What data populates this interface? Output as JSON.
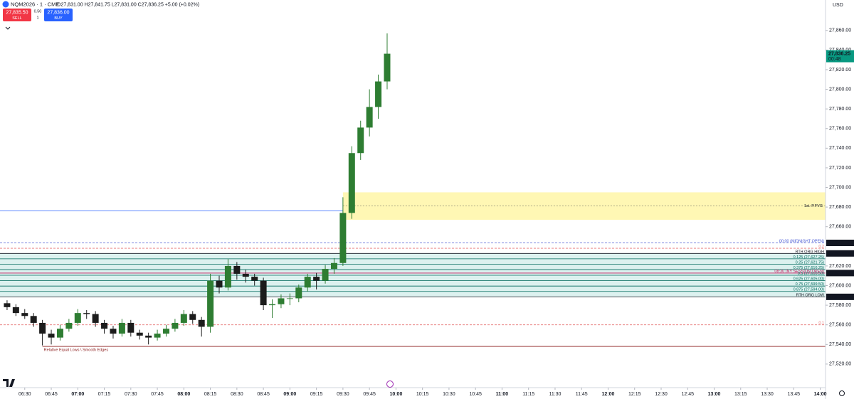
{
  "header": {
    "symbol": "NQM2026 · 1 · CME",
    "ohlc": "O27,831.00 H27,841.75 L27,831.00 C27,836.25 +5.00 (+0.02%)",
    "sell_price": "27,835.50",
    "sell_label": "SELL",
    "buy_price": "27,836.00",
    "buy_label": "BUY",
    "spread": "0.50",
    "quantity": "1",
    "currency": "USD"
  },
  "chart_data": {
    "type": "candlestick",
    "up_color": "#2e7d32",
    "down_color": "#1c1c1c",
    "x": [
      "06:20",
      "06:25",
      "06:30",
      "06:35",
      "06:40",
      "06:45",
      "06:50",
      "06:55",
      "07:00",
      "07:05",
      "07:10",
      "07:15",
      "07:20",
      "07:25",
      "07:30",
      "07:35",
      "07:40",
      "07:45",
      "07:50",
      "07:55",
      "08:00",
      "08:05",
      "08:10",
      "08:15",
      "08:20",
      "08:25",
      "08:30",
      "08:35",
      "08:40",
      "08:45",
      "08:50",
      "08:55",
      "09:00",
      "09:05",
      "09:10",
      "09:15",
      "09:20",
      "09:25",
      "09:30",
      "09:35",
      "09:40",
      "09:45",
      "09:50",
      "09:55"
    ],
    "open": [
      27582,
      27578,
      27572,
      27569,
      27562,
      27551,
      27547,
      27556,
      27562,
      27572,
      27571,
      27562,
      27556,
      27551,
      27562,
      27552,
      27549,
      27547,
      27551,
      27556,
      27562,
      27571,
      27565,
      27558,
      27605,
      27598,
      27620,
      27612,
      27609,
      27605,
      27580,
      27581,
      27587,
      27587,
      27598,
      27609,
      27605,
      27617,
      27623,
      27674,
      27735,
      27761,
      27782,
      27808
    ],
    "high": [
      27585,
      27581,
      27576,
      27572,
      27565,
      27555,
      27560,
      27566,
      27576,
      27575,
      27574,
      27565,
      27559,
      27566,
      27565,
      27555,
      27552,
      27555,
      27560,
      27566,
      27575,
      27574,
      27568,
      27612,
      27610,
      27627,
      27624,
      27616,
      27612,
      27608,
      27586,
      27591,
      27592,
      27601,
      27612,
      27613,
      27621,
      27628,
      27690,
      27742,
      27768,
      27800,
      27815,
      27857
    ],
    "low": [
      27575,
      27569,
      27566,
      27558,
      27539,
      27540,
      27544,
      27553,
      27559,
      27566,
      27558,
      27551,
      27546,
      27548,
      27548,
      27545,
      27540,
      27544,
      27548,
      27553,
      27559,
      27561,
      27548,
      27552,
      27592,
      27595,
      27606,
      27603,
      27600,
      27575,
      27567,
      27577,
      27580,
      27583,
      27594,
      27596,
      27602,
      27612,
      27620,
      27668,
      27728,
      27752,
      27770,
      27800
    ],
    "close": [
      27578,
      27572,
      27569,
      27562,
      27551,
      27547,
      27556,
      27562,
      27572,
      27571,
      27562,
      27556,
      27551,
      27562,
      27552,
      27549,
      27547,
      27551,
      27556,
      27562,
      27571,
      27565,
      27558,
      27605,
      27598,
      27620,
      27612,
      27609,
      27605,
      27580,
      27581,
      27587,
      27587,
      27598,
      27609,
      27605,
      27617,
      27623,
      27674,
      27735,
      27761,
      27782,
      27808,
      27836.25
    ],
    "xlim": [
      "06:16",
      "14:03"
    ],
    "xticks": [
      "06:30",
      "06:45",
      "07:00",
      "07:15",
      "07:30",
      "07:45",
      "08:00",
      "08:15",
      "08:30",
      "08:45",
      "09:00",
      "09:15",
      "09:30",
      "09:45",
      "10:00",
      "10:15",
      "10:30",
      "10:45",
      "11:00",
      "11:15",
      "11:30",
      "11:45",
      "12:00",
      "12:15",
      "12:30",
      "12:45",
      "13:00",
      "13:15",
      "13:30",
      "13:45",
      "14:00"
    ],
    "ylim": [
      27496,
      27891
    ],
    "yticks": [
      {
        "value": 27520,
        "label": "27,520.00"
      },
      {
        "value": 27540,
        "label": "27,540.00"
      },
      {
        "value": 27560,
        "label": "27,560.00"
      },
      {
        "value": 27580,
        "label": "27,580.00"
      },
      {
        "value": 27600,
        "label": "27,600.00"
      },
      {
        "value": 27620,
        "label": "27,620.00"
      },
      {
        "value": 27660,
        "label": "27,660.00"
      },
      {
        "value": 27680,
        "label": "27,680.00"
      },
      {
        "value": 27700,
        "label": "27,700.00"
      },
      {
        "value": 27720,
        "label": "27,720.00"
      },
      {
        "value": 27740,
        "label": "27,740.00"
      },
      {
        "value": 27760,
        "label": "27,760.00"
      },
      {
        "value": 27780,
        "label": "27,780.00"
      },
      {
        "value": 27800,
        "label": "27,800.00"
      },
      {
        "value": 27820,
        "label": "27,820.00"
      },
      {
        "value": 27840,
        "label": "27,840.00"
      },
      {
        "value": 27860,
        "label": "27,860.00"
      }
    ],
    "grid": false,
    "fvg": {
      "name": "1st. P.FVG",
      "start": "09:30",
      "ylim": [
        27667,
        27695
      ],
      "mid": 27681,
      "color": "#fff176"
    },
    "zone": {
      "ylim": [
        27588.5,
        27632.75
      ],
      "color": "#b2dfdb"
    },
    "levels": [
      {
        "value": 27676,
        "end": "09:30",
        "color": "#2962ff",
        "dash": false
      },
      {
        "value": 27643.5,
        "name": "00:00 (MIDNIGHT OPEN)",
        "tag": "27,643.50",
        "color": "#4a5bd4",
        "dash": true,
        "tag_color": "#131722"
      },
      {
        "value": 27638,
        "name": "0.2",
        "color": "#e57373",
        "dash": true
      },
      {
        "value": 27632.75,
        "name": "RTH ORG HIGH",
        "tag": "27,632.75",
        "color": "#131722",
        "dash": false,
        "tag_color": "#131722"
      },
      {
        "value": 27627.25,
        "name": "0.125 (27,627.25)",
        "color": "#00695c",
        "dash": false
      },
      {
        "value": 27621.75,
        "name": "0.25 (27,621.75)",
        "color": "#00695c",
        "dash": false
      },
      {
        "value": 27616.25,
        "name": "0.375 (27,616.25)",
        "color": "#00695c",
        "dash": false
      },
      {
        "value": 27612.75,
        "name": "08:30 (NY SESSION OPEN)",
        "tag": "27,612.75",
        "color": "#c2185b",
        "dash": false,
        "tag_color": "#131722"
      },
      {
        "value": 27610.5,
        "name": "0.5 (27,610.50)",
        "color": "#00695c",
        "dash": false
      },
      {
        "value": 27605,
        "name": "0.625 (27,605.00)",
        "color": "#00695c",
        "dash": false
      },
      {
        "value": 27599.5,
        "name": "0.75 (27,599.50)",
        "color": "#00695c",
        "dash": false
      },
      {
        "value": 27594,
        "name": "0.875 (27,594.00)",
        "color": "#00695c",
        "dash": false
      },
      {
        "value": 27588.5,
        "name": "RTH ORG LOW",
        "tag": "27,588.50",
        "color": "#131722",
        "dash": false,
        "tag_color": "#131722"
      },
      {
        "value": 27560,
        "name": "0.1",
        "color": "#e57373",
        "dash": true
      },
      {
        "value": 27538,
        "name": "Relative Equal Lows \\ Smooth Edges",
        "start": "06:40",
        "color": "#8b1a1a",
        "dash": false,
        "label_left": true
      }
    ],
    "last_price": {
      "value": 27836.25,
      "label": "27,836.25",
      "countdown": "00:48",
      "color": "#089981"
    }
  }
}
